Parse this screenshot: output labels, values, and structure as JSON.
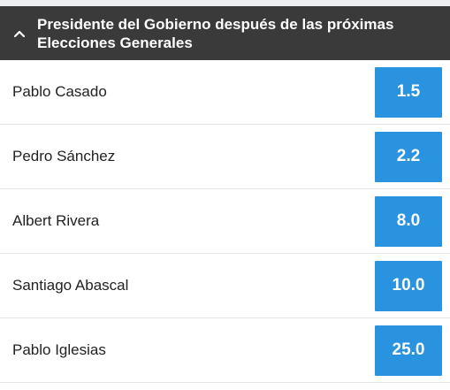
{
  "colors": {
    "header_bg": "#3a3a3a",
    "odds_button_bg": "#2a93e0",
    "page_bg": "#ffffff",
    "divider": "#e3e5e6"
  },
  "market": {
    "title": "Presidente del Gobierno después de las próximas\nElecciones Generales",
    "collapse_icon": "chevron-up-icon"
  },
  "runners": [
    {
      "name": "Pablo Casado",
      "odds": "1.5"
    },
    {
      "name": "Pedro Sánchez",
      "odds": "2.2"
    },
    {
      "name": "Albert Rivera",
      "odds": "8.0"
    },
    {
      "name": "Santiago Abascal",
      "odds": "10.0"
    },
    {
      "name": "Pablo Iglesias",
      "odds": "25.0"
    }
  ]
}
